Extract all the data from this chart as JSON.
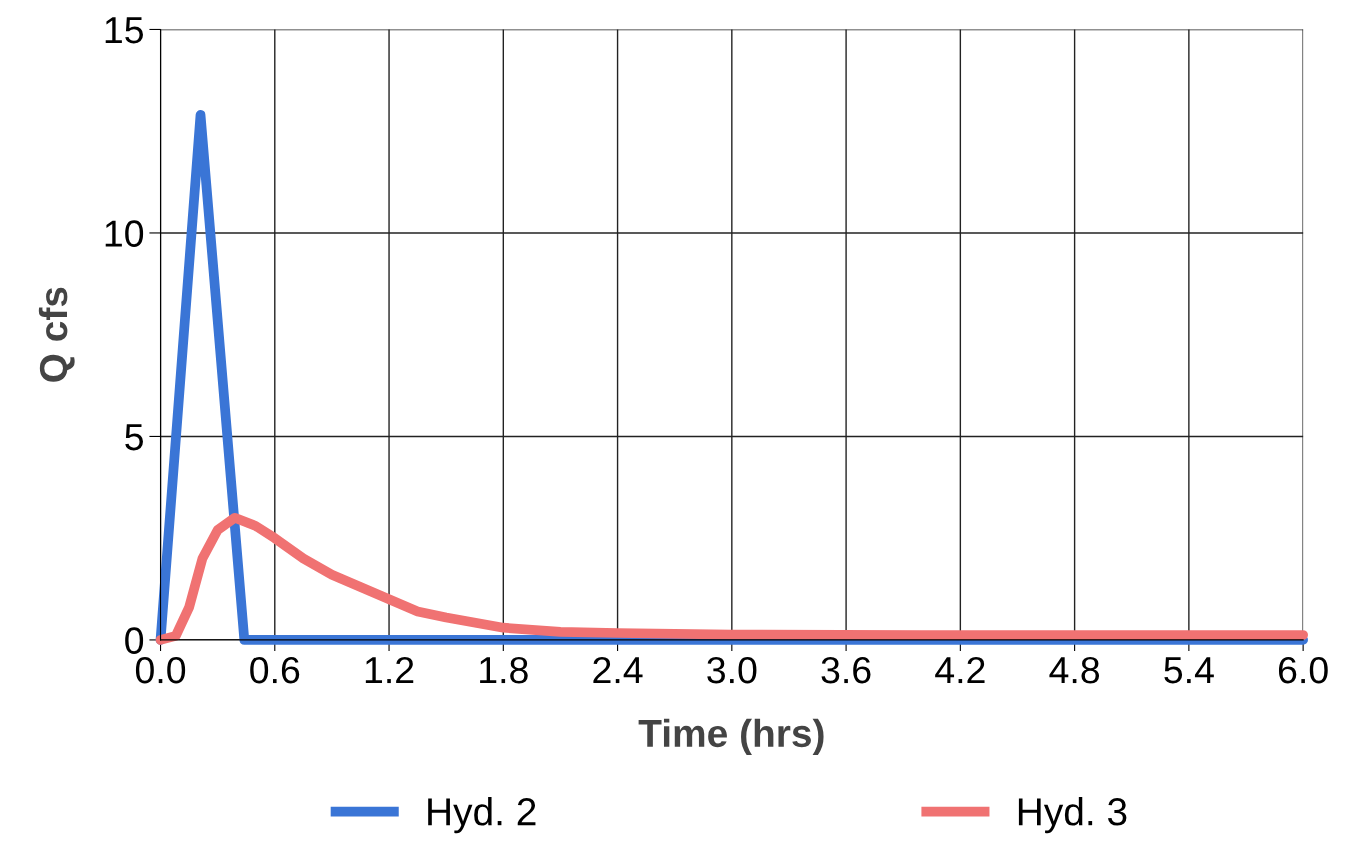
{
  "chart_data": {
    "type": "line",
    "xlabel": "Time (hrs)",
    "ylabel": "Q cfs",
    "xlim": [
      0,
      6
    ],
    "xticks": [
      {
        "value": 0,
        "label": "0.0"
      },
      0.6,
      1.2,
      1.8,
      2.4,
      {
        "value": 3,
        "label": "3.0"
      },
      3.6,
      4.2,
      4.8,
      5.4,
      {
        "value": 6,
        "label": "6.0"
      }
    ],
    "ylim": [
      0,
      15
    ],
    "yticks": [
      0,
      5,
      10,
      15
    ],
    "grid": true,
    "legend": "bottom",
    "series": [
      {
        "name": "Hyd. 2",
        "color": "#3a75d6",
        "x": [
          0,
          0.21,
          0.44,
          6
        ],
        "values": [
          0,
          12.9,
          0,
          0
        ]
      },
      {
        "name": "Hyd. 3",
        "color": "#f07272",
        "x": [
          0,
          0.08,
          0.15,
          0.22,
          0.3,
          0.39,
          0.5,
          0.6,
          0.75,
          0.9,
          1.05,
          1.2,
          1.35,
          1.5,
          1.8,
          2.1,
          2.4,
          3.0,
          4.0,
          5.0,
          6.0
        ],
        "values": [
          0,
          0.1,
          0.8,
          2.0,
          2.7,
          3.0,
          2.8,
          2.5,
          2.0,
          1.6,
          1.3,
          1.0,
          0.7,
          0.55,
          0.3,
          0.2,
          0.17,
          0.13,
          0.12,
          0.12,
          0.12
        ]
      }
    ]
  }
}
